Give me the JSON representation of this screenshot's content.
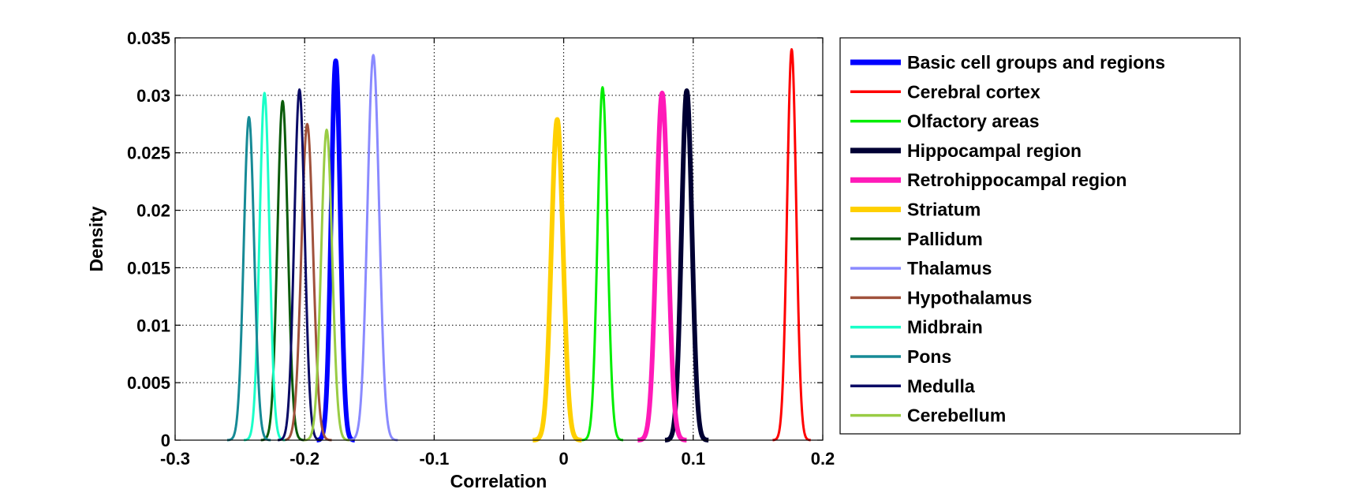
{
  "chart_data": {
    "type": "line",
    "title": "",
    "xlabel": "Correlation",
    "ylabel": "Density",
    "xlim": [
      -0.3,
      0.2
    ],
    "ylim": [
      0,
      0.035
    ],
    "xticks": [
      -0.3,
      -0.2,
      -0.1,
      0,
      0.1,
      0.2
    ],
    "xtick_labels": [
      "-0.3",
      "-0.2",
      "-0.1",
      "0",
      "0.1",
      "0.2"
    ],
    "yticks": [
      0,
      0.005,
      0.01,
      0.015,
      0.02,
      0.025,
      0.03,
      0.035
    ],
    "ytick_labels": [
      "0",
      "0.005",
      "0.01",
      "0.015",
      "0.02",
      "0.025",
      "0.03",
      "0.035"
    ],
    "grid": true,
    "legend_position": "outside-right",
    "series": [
      {
        "name": "Basic cell groups and regions",
        "color": "#0000ff",
        "thick": true,
        "peak_x": -0.176,
        "peak_y": 0.033,
        "sigma": 0.0035
      },
      {
        "name": "Cerebral cortex",
        "color": "#ff0000",
        "thick": false,
        "peak_x": 0.176,
        "peak_y": 0.034,
        "sigma": 0.0035
      },
      {
        "name": "Olfactory areas",
        "color": "#00ee00",
        "thick": false,
        "peak_x": 0.03,
        "peak_y": 0.0307,
        "sigma": 0.0038
      },
      {
        "name": "Hippocampal region",
        "color": "#000033",
        "thick": true,
        "peak_x": 0.095,
        "peak_y": 0.0304,
        "sigma": 0.004
      },
      {
        "name": "Retrohippocampal region",
        "color": "#ff1ab8",
        "thick": true,
        "peak_x": 0.076,
        "peak_y": 0.0302,
        "sigma": 0.0045
      },
      {
        "name": "Striatum",
        "color": "#ffd000",
        "thick": true,
        "peak_x": -0.005,
        "peak_y": 0.0279,
        "sigma": 0.0045
      },
      {
        "name": "Pallidum",
        "color": "#0b5c0b",
        "thick": false,
        "peak_x": -0.217,
        "peak_y": 0.0295,
        "sigma": 0.004
      },
      {
        "name": "Thalamus",
        "color": "#8a8aff",
        "thick": false,
        "peak_x": -0.147,
        "peak_y": 0.0335,
        "sigma": 0.0045
      },
      {
        "name": "Hypothalamus",
        "color": "#a0523c",
        "thick": false,
        "peak_x": -0.198,
        "peak_y": 0.0275,
        "sigma": 0.0045
      },
      {
        "name": "Midbrain",
        "color": "#1affc8",
        "thick": false,
        "peak_x": -0.231,
        "peak_y": 0.0302,
        "sigma": 0.0038
      },
      {
        "name": "Pons",
        "color": "#168a96",
        "thick": false,
        "peak_x": -0.243,
        "peak_y": 0.0281,
        "sigma": 0.004
      },
      {
        "name": "Medulla",
        "color": "#0a0a66",
        "thick": false,
        "peak_x": -0.204,
        "peak_y": 0.0305,
        "sigma": 0.004
      },
      {
        "name": "Cerebellum",
        "color": "#99cc44",
        "thick": false,
        "peak_x": -0.183,
        "peak_y": 0.027,
        "sigma": 0.0042
      }
    ]
  }
}
